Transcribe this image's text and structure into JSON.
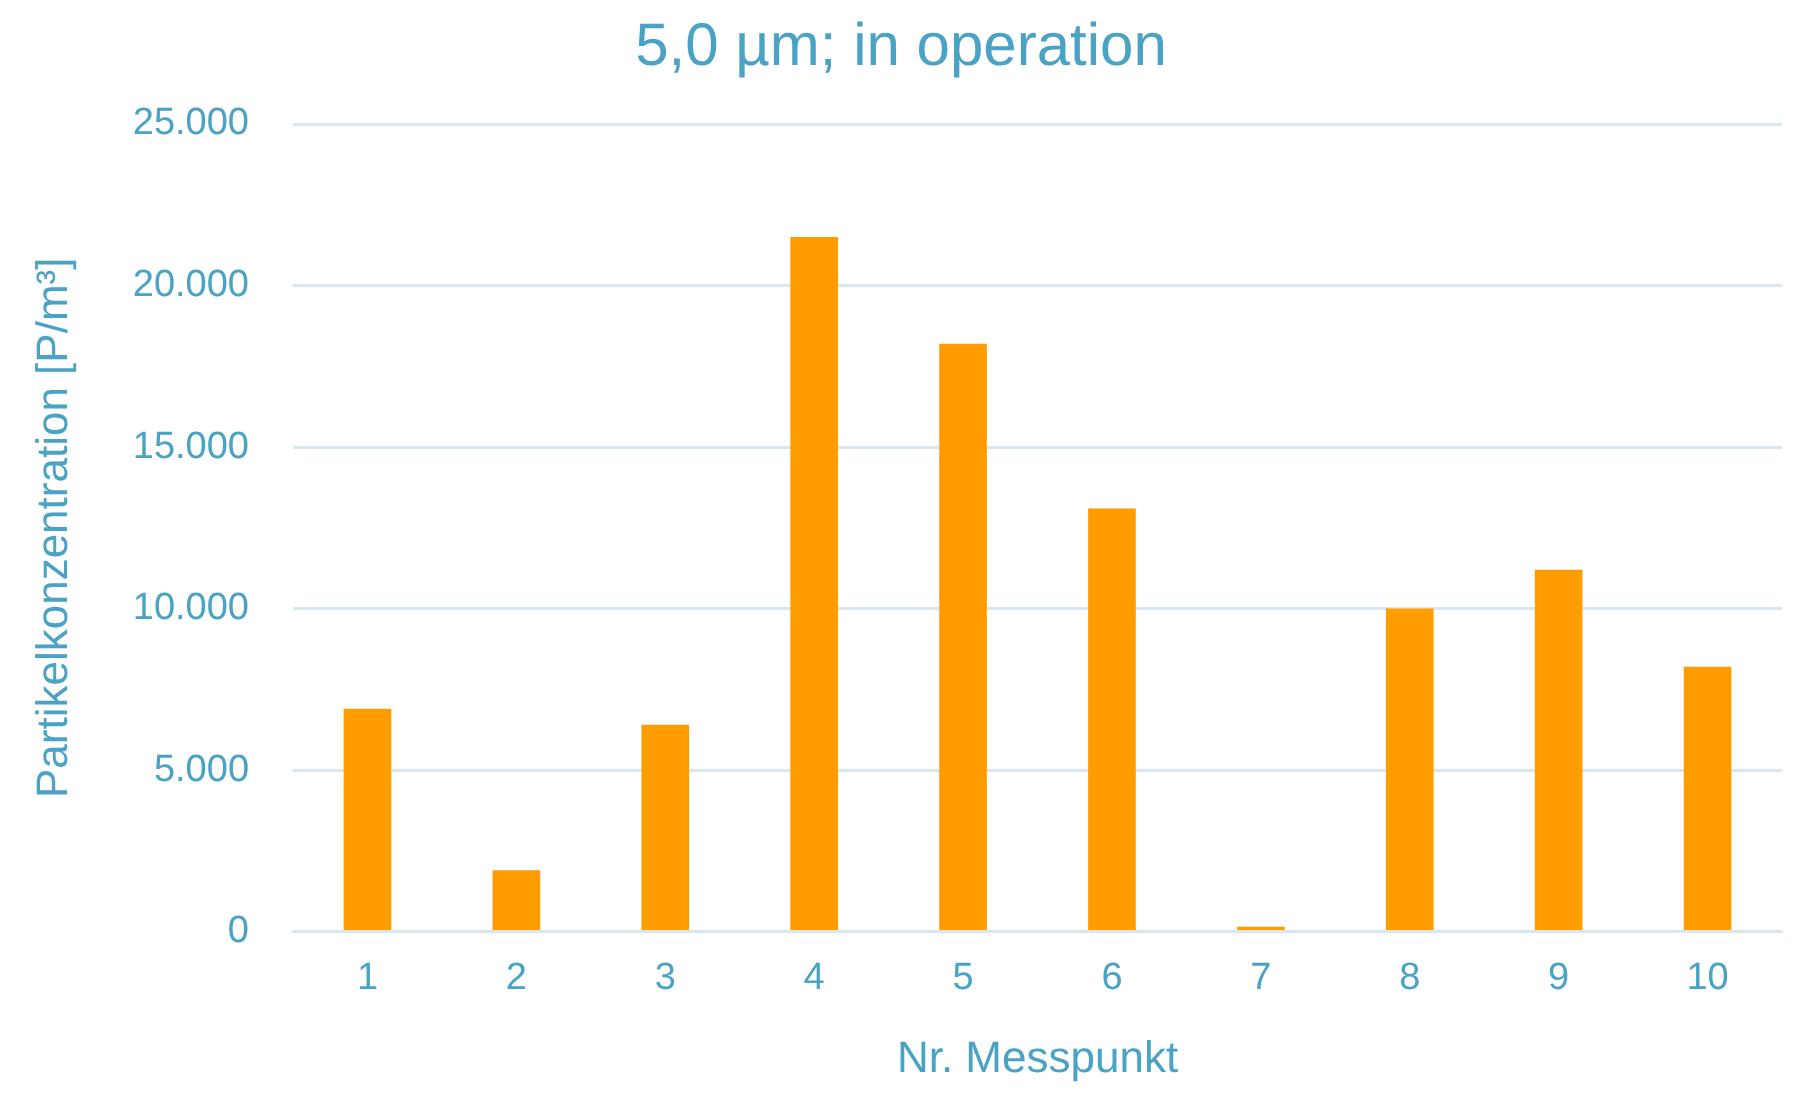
{
  "chart_data": {
    "type": "bar",
    "title": "5,0 µm; in operation",
    "xlabel": "Nr. Messpunkt",
    "ylabel": "Partikelkonzentration [P/m³]",
    "categories": [
      "1",
      "2",
      "3",
      "4",
      "5",
      "6",
      "7",
      "8",
      "9",
      "10"
    ],
    "values": [
      6900,
      1900,
      6400,
      21500,
      18200,
      13100,
      150,
      10000,
      11200,
      8200
    ],
    "color": "#ff9c00",
    "ylim": [
      0,
      25000
    ],
    "yticks": [
      {
        "value": 0,
        "label": "0"
      },
      {
        "value": 5000,
        "label": "5.000"
      },
      {
        "value": 10000,
        "label": "10.000"
      },
      {
        "value": 15000,
        "label": "15.000"
      },
      {
        "value": 20000,
        "label": "20.000"
      },
      {
        "value": 25000,
        "label": "25.000"
      }
    ],
    "grid": "y",
    "legend": false
  }
}
